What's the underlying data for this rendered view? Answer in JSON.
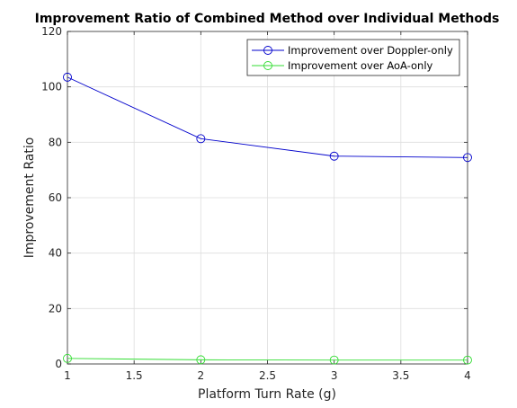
{
  "chart_data": {
    "type": "line",
    "title": "Improvement Ratio of Combined Method over Individual Methods",
    "xlabel": "Platform Turn Rate (g)",
    "ylabel": "Improvement Ratio",
    "xlim": [
      1,
      4
    ],
    "ylim": [
      0,
      120
    ],
    "xticks": [
      1,
      1.5,
      2,
      2.5,
      3,
      3.5,
      4
    ],
    "xtick_labels": [
      "1",
      "1.5",
      "2",
      "2.5",
      "3",
      "3.5",
      "4"
    ],
    "yticks": [
      0,
      20,
      40,
      60,
      80,
      100,
      120
    ],
    "ytick_labels": [
      "0",
      "20",
      "40",
      "60",
      "80",
      "100",
      "120"
    ],
    "grid": true,
    "legend_location": "top-right",
    "x": [
      1,
      2,
      3,
      4
    ],
    "series": [
      {
        "name": "Improvement over Doppler-only",
        "values": [
          103.5,
          81.3,
          75.0,
          74.5
        ],
        "color": "#0000cc",
        "marker": "circle"
      },
      {
        "name": "Improvement over AoA-only",
        "values": [
          2.0,
          1.5,
          1.4,
          1.4
        ],
        "color": "#33dd33",
        "marker": "circle"
      }
    ]
  }
}
